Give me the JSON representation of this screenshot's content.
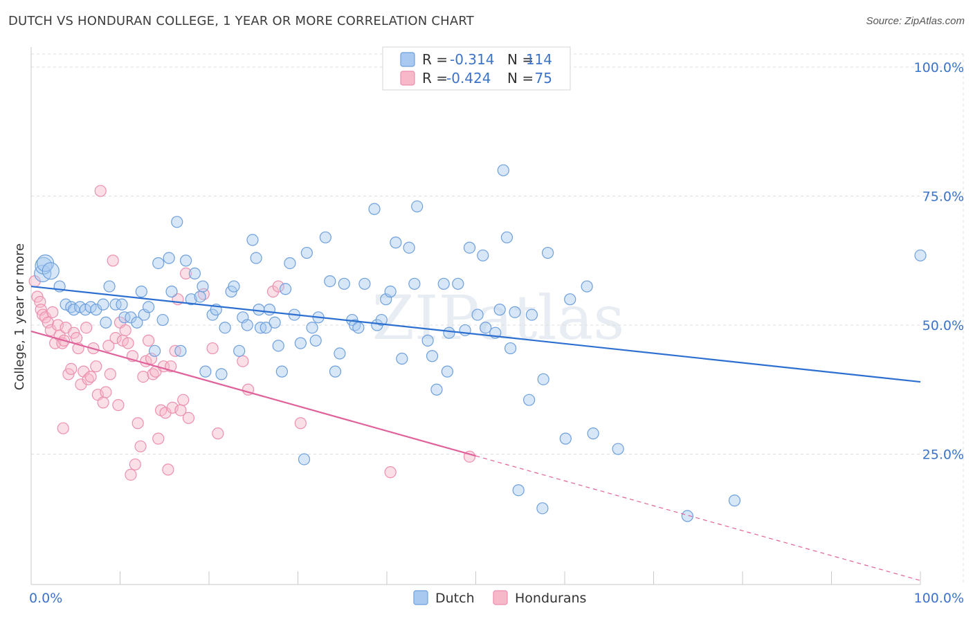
{
  "title": "DUTCH VS HONDURAN COLLEGE, 1 YEAR OR MORE CORRELATION CHART",
  "source": "Source: ZipAtlas.com",
  "watermark": "ZIPatlas",
  "colors": {
    "dutch_fill": "#a9c9f0",
    "dutch_stroke": "#6d9fdc",
    "dutch_line": "#2c6fd0",
    "hond_fill": "#f7b8ca",
    "hond_stroke": "#ec8fae",
    "hond_line": "#e0629a",
    "tick": "#3b73c8"
  },
  "legend": {
    "dutch": {
      "r_label": "R =",
      "r_value": "-0.314",
      "n_label": "N =",
      "n_value": "114"
    },
    "hond": {
      "r_label": "R =",
      "r_value": "-0.424",
      "n_label": "N =",
      "n_value": "75"
    }
  },
  "bottom_legend": {
    "dutch": "Dutch",
    "hond": "Hondurans"
  },
  "chart_data": {
    "type": "scatter",
    "title": "DUTCH VS HONDURAN COLLEGE, 1 YEAR OR MORE CORRELATION CHART",
    "xlabel": "",
    "ylabel": "College, 1 year or more",
    "xlim": [
      0,
      100
    ],
    "ylim": [
      0,
      105
    ],
    "x_tick_labels": [
      "0.0%",
      "100.0%"
    ],
    "y_ticks": [
      25,
      50,
      75,
      100
    ],
    "y_tick_labels": [
      "25.0%",
      "50.0%",
      "75.0%",
      "100.0%"
    ],
    "legend_position": "top-center",
    "series": [
      {
        "name": "Dutch",
        "r": -0.314,
        "n": 114,
        "trend": {
          "x": [
            0,
            100
          ],
          "y": [
            57.5,
            39.0
          ],
          "solid_until": 100
        },
        "points": [
          [
            1.3,
            60.0
          ],
          [
            1.4,
            61.5
          ],
          [
            1.6,
            62.0
          ],
          [
            2.2,
            60.5
          ],
          [
            3.2,
            57.5
          ],
          [
            3.9,
            54.0
          ],
          [
            4.5,
            53.5
          ],
          [
            4.8,
            53.0
          ],
          [
            5.5,
            53.5
          ],
          [
            6.1,
            53.0
          ],
          [
            6.7,
            53.5
          ],
          [
            7.3,
            53.0
          ],
          [
            8.1,
            54.0
          ],
          [
            8.4,
            50.5
          ],
          [
            8.8,
            57.5
          ],
          [
            9.5,
            54.0
          ],
          [
            10.2,
            54.0
          ],
          [
            10.5,
            51.5
          ],
          [
            11.2,
            51.5
          ],
          [
            11.9,
            50.5
          ],
          [
            12.4,
            56.5
          ],
          [
            12.7,
            52.0
          ],
          [
            13.2,
            53.5
          ],
          [
            13.9,
            45.0
          ],
          [
            14.3,
            62.0
          ],
          [
            14.8,
            51.0
          ],
          [
            15.5,
            63.0
          ],
          [
            15.8,
            56.5
          ],
          [
            16.4,
            70.0
          ],
          [
            16.8,
            45.0
          ],
          [
            17.4,
            62.5
          ],
          [
            18.0,
            55.0
          ],
          [
            18.4,
            60.0
          ],
          [
            19.0,
            55.5
          ],
          [
            19.3,
            57.5
          ],
          [
            19.6,
            41.0
          ],
          [
            20.4,
            52.0
          ],
          [
            20.8,
            53.0
          ],
          [
            21.4,
            40.5
          ],
          [
            21.8,
            49.5
          ],
          [
            22.5,
            56.5
          ],
          [
            22.8,
            57.5
          ],
          [
            23.4,
            45.0
          ],
          [
            23.8,
            51.5
          ],
          [
            24.3,
            50.0
          ],
          [
            24.9,
            66.5
          ],
          [
            25.3,
            63.0
          ],
          [
            25.8,
            49.5
          ],
          [
            26.4,
            49.5
          ],
          [
            26.8,
            53.0
          ],
          [
            27.4,
            50.5
          ],
          [
            27.8,
            46.0
          ],
          [
            28.2,
            41.0
          ],
          [
            28.6,
            57.0
          ],
          [
            29.1,
            62.0
          ],
          [
            29.6,
            52.0
          ],
          [
            30.3,
            46.5
          ],
          [
            31.0,
            64.0
          ],
          [
            31.6,
            49.5
          ],
          [
            32.0,
            47.0
          ],
          [
            32.3,
            51.5
          ],
          [
            33.1,
            67.0
          ],
          [
            33.6,
            58.5
          ],
          [
            34.2,
            41.0
          ],
          [
            34.7,
            44.5
          ],
          [
            35.2,
            58.0
          ],
          [
            36.1,
            51.0
          ],
          [
            36.4,
            50.0
          ],
          [
            37.5,
            58.0
          ],
          [
            38.6,
            72.5
          ],
          [
            38.9,
            50.0
          ],
          [
            39.4,
            51.0
          ],
          [
            39.9,
            55.0
          ],
          [
            40.4,
            56.5
          ],
          [
            41.0,
            66.0
          ],
          [
            41.7,
            43.5
          ],
          [
            42.5,
            65.0
          ],
          [
            43.1,
            58.0
          ],
          [
            43.4,
            73.0
          ],
          [
            44.6,
            47.0
          ],
          [
            45.1,
            44.0
          ],
          [
            45.6,
            37.5
          ],
          [
            46.4,
            58.0
          ],
          [
            46.8,
            41.0
          ],
          [
            48.0,
            58.0
          ],
          [
            48.8,
            49.0
          ],
          [
            49.3,
            65.0
          ],
          [
            50.2,
            52.0
          ],
          [
            50.8,
            63.5
          ],
          [
            51.1,
            49.5
          ],
          [
            52.2,
            48.5
          ],
          [
            52.7,
            53.0
          ],
          [
            53.1,
            80.0
          ],
          [
            53.5,
            67.0
          ],
          [
            53.9,
            45.5
          ],
          [
            54.4,
            52.5
          ],
          [
            56.0,
            35.5
          ],
          [
            57.6,
            39.5
          ],
          [
            58.1,
            64.0
          ],
          [
            60.1,
            28.0
          ],
          [
            62.5,
            57.5
          ],
          [
            63.2,
            29.0
          ],
          [
            66.0,
            26.0
          ],
          [
            54.8,
            18.0
          ],
          [
            57.5,
            14.5
          ],
          [
            73.8,
            13.0
          ],
          [
            79.1,
            16.0
          ],
          [
            100.0,
            63.5
          ],
          [
            30.7,
            24.0
          ],
          [
            56.3,
            52.0
          ],
          [
            60.6,
            55.0
          ],
          [
            36.8,
            49.5
          ],
          [
            25.6,
            53.0
          ],
          [
            47.0,
            48.5
          ]
        ]
      },
      {
        "name": "Hondurans",
        "r": -0.424,
        "n": 75,
        "trend": {
          "x": [
            0,
            100
          ],
          "y": [
            48.8,
            0.5
          ],
          "solid_until": 50
        },
        "points": [
          [
            0.4,
            58.5
          ],
          [
            0.7,
            55.5
          ],
          [
            1.0,
            54.5
          ],
          [
            1.1,
            53.0
          ],
          [
            1.3,
            52.0
          ],
          [
            1.6,
            51.5
          ],
          [
            1.9,
            50.5
          ],
          [
            2.2,
            49.0
          ],
          [
            2.4,
            52.5
          ],
          [
            2.7,
            46.5
          ],
          [
            3.0,
            50.0
          ],
          [
            3.2,
            48.0
          ],
          [
            3.5,
            46.5
          ],
          [
            3.7,
            47.0
          ],
          [
            3.9,
            49.5
          ],
          [
            4.2,
            40.5
          ],
          [
            4.5,
            41.5
          ],
          [
            4.8,
            48.5
          ],
          [
            5.1,
            47.5
          ],
          [
            5.3,
            45.5
          ],
          [
            5.6,
            38.5
          ],
          [
            5.9,
            41.0
          ],
          [
            6.2,
            49.5
          ],
          [
            6.4,
            39.5
          ],
          [
            6.7,
            40.0
          ],
          [
            7.0,
            45.5
          ],
          [
            7.3,
            42.0
          ],
          [
            7.5,
            36.5
          ],
          [
            7.8,
            76.0
          ],
          [
            8.1,
            35.0
          ],
          [
            8.4,
            37.0
          ],
          [
            8.7,
            46.0
          ],
          [
            8.9,
            40.5
          ],
          [
            9.2,
            62.5
          ],
          [
            9.5,
            47.5
          ],
          [
            9.8,
            34.5
          ],
          [
            10.0,
            50.5
          ],
          [
            10.3,
            47.0
          ],
          [
            10.6,
            49.0
          ],
          [
            10.9,
            46.5
          ],
          [
            11.2,
            21.0
          ],
          [
            11.4,
            44.0
          ],
          [
            11.7,
            23.0
          ],
          [
            12.0,
            31.0
          ],
          [
            12.3,
            26.5
          ],
          [
            12.6,
            40.0
          ],
          [
            12.9,
            43.0
          ],
          [
            13.2,
            47.0
          ],
          [
            13.5,
            43.5
          ],
          [
            13.7,
            40.5
          ],
          [
            14.0,
            41.0
          ],
          [
            14.3,
            28.0
          ],
          [
            14.6,
            33.5
          ],
          [
            14.9,
            42.0
          ],
          [
            15.1,
            33.0
          ],
          [
            15.4,
            22.0
          ],
          [
            15.7,
            42.0
          ],
          [
            15.9,
            34.0
          ],
          [
            16.2,
            45.0
          ],
          [
            16.5,
            55.0
          ],
          [
            16.8,
            33.5
          ],
          [
            17.1,
            35.5
          ],
          [
            17.4,
            60.0
          ],
          [
            17.7,
            32.0
          ],
          [
            19.4,
            56.0
          ],
          [
            20.4,
            45.5
          ],
          [
            21.0,
            29.0
          ],
          [
            23.8,
            43.0
          ],
          [
            24.4,
            37.5
          ],
          [
            27.2,
            56.5
          ],
          [
            27.8,
            57.5
          ],
          [
            30.3,
            31.0
          ],
          [
            40.4,
            21.5
          ],
          [
            49.3,
            24.5
          ],
          [
            3.6,
            30.0
          ]
        ]
      }
    ]
  }
}
